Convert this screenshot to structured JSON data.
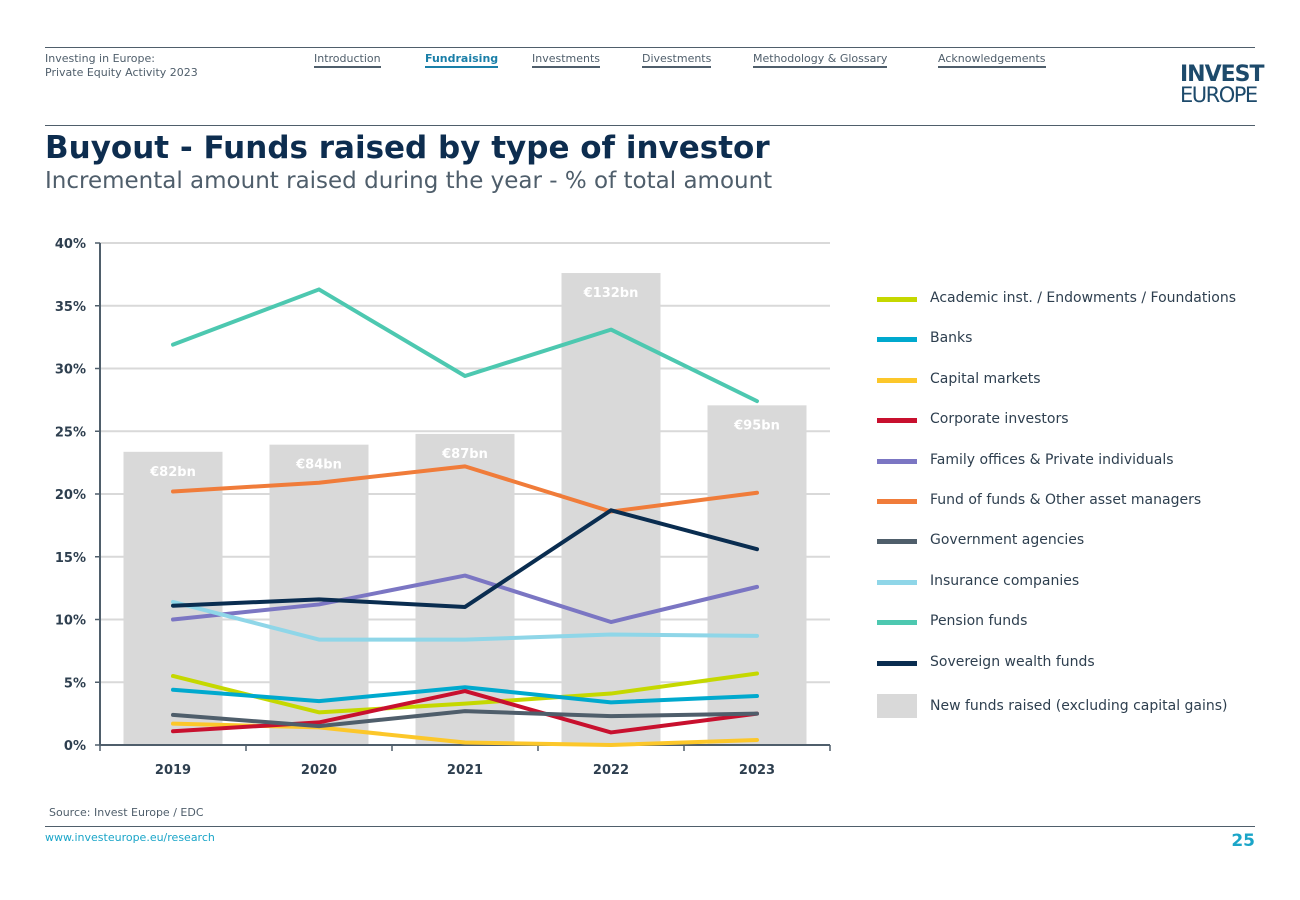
{
  "header": {
    "doc_title_line1": "Investing in Europe:",
    "doc_title_line2": "Private Equity Activity 2023",
    "nav": [
      "Introduction",
      "Fundraising",
      "Investments",
      "Divestments",
      "Methodology & Glossary",
      "Acknowledgements"
    ],
    "active_nav": "Fundraising",
    "logo_line1": "INVEST",
    "logo_line2": "EUROPE"
  },
  "title": "Buyout - Funds raised by type of investor",
  "subtitle": "Incremental amount raised during the year - % of total amount",
  "footer": {
    "source": "Source: Invest Europe / EDC",
    "url": "www.investeurope.eu/research",
    "page": "25"
  },
  "chart_data": {
    "type": "line+bar",
    "categories": [
      "2019",
      "2020",
      "2021",
      "2022",
      "2023"
    ],
    "ylim": [
      0,
      40
    ],
    "yticks": [
      "0%",
      "5%",
      "10%",
      "15%",
      "20%",
      "25%",
      "30%",
      "35%",
      "40%"
    ],
    "grid": true,
    "legend_position": "right",
    "bars": {
      "name": "New funds raised (excluding capital gains)",
      "values_bn": [
        82,
        84,
        87,
        132,
        95
      ],
      "labels": [
        "€82bn",
        "€84bn",
        "€87bn",
        "€132bn",
        "€95bn"
      ],
      "secondary_ylim_bn": [
        0,
        140.4
      ],
      "color": "#d9d9d9"
    },
    "series": [
      {
        "name": "Academic inst. / Endowments / Foundations",
        "color": "#c5d800",
        "values": [
          5.5,
          2.6,
          3.3,
          4.1,
          5.7
        ]
      },
      {
        "name": "Banks",
        "color": "#00a9ce",
        "values": [
          4.4,
          3.5,
          4.6,
          3.4,
          3.9
        ]
      },
      {
        "name": "Capital markets",
        "color": "#fcc72a",
        "values": [
          1.7,
          1.4,
          0.2,
          0.0,
          0.4
        ]
      },
      {
        "name": "Corporate investors",
        "color": "#c8102e",
        "values": [
          1.1,
          1.8,
          4.3,
          1.0,
          2.5
        ]
      },
      {
        "name": "Family offices & Private individuals",
        "color": "#7b76c3",
        "values": [
          10.0,
          11.2,
          13.5,
          9.8,
          12.6
        ]
      },
      {
        "name": "Fund of funds & Other asset managers",
        "color": "#f07c3a",
        "values": [
          20.2,
          20.9,
          22.2,
          18.6,
          20.1
        ]
      },
      {
        "name": "Government agencies",
        "color": "#4f5e6b",
        "values": [
          2.4,
          1.5,
          2.7,
          2.3,
          2.5
        ]
      },
      {
        "name": "Insurance companies",
        "color": "#8fd6e8",
        "values": [
          11.4,
          8.4,
          8.4,
          8.8,
          8.7
        ]
      },
      {
        "name": "Pension funds",
        "color": "#4dc8b0",
        "values": [
          31.9,
          36.3,
          29.4,
          33.1,
          27.4
        ]
      },
      {
        "name": "Sovereign wealth funds",
        "color": "#0a2d50",
        "values": [
          11.1,
          11.6,
          11.0,
          18.7,
          15.6
        ]
      }
    ]
  }
}
